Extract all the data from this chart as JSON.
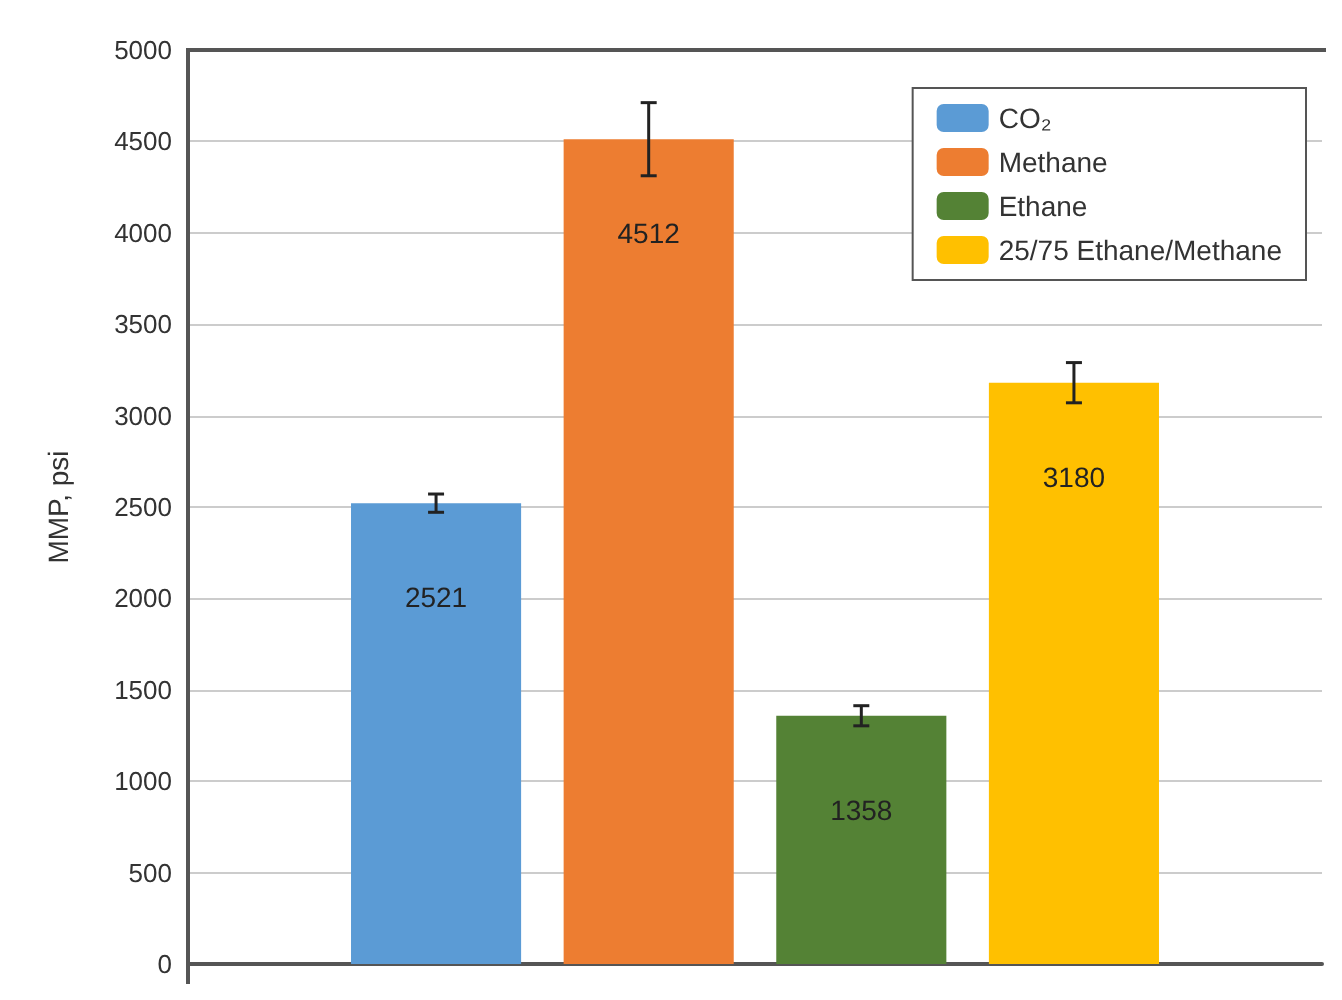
{
  "chart_data": {
    "type": "bar",
    "ylabel": "MMP, psi",
    "categories": [
      null
    ],
    "series": [
      {
        "name": "CO₂",
        "color": "#5b9bd5",
        "values": [
          2521
        ],
        "errors": [
          50
        ]
      },
      {
        "name": "Methane",
        "color": "#ed7d31",
        "values": [
          4512
        ],
        "errors": [
          200
        ]
      },
      {
        "name": "Ethane",
        "color": "#548235",
        "values": [
          1358
        ],
        "errors": [
          55
        ]
      },
      {
        "name": "25/75 Ethane/Methane",
        "color": "#ffc000",
        "values": [
          3180
        ],
        "errors": [
          110
        ]
      }
    ],
    "ylim": [
      0,
      5000
    ],
    "yticks": [
      0,
      500,
      1000,
      1500,
      2000,
      2500,
      3000,
      3500,
      4000,
      4500,
      5000
    ],
    "grid": "y",
    "legend": "top right",
    "data_labels": true
  }
}
